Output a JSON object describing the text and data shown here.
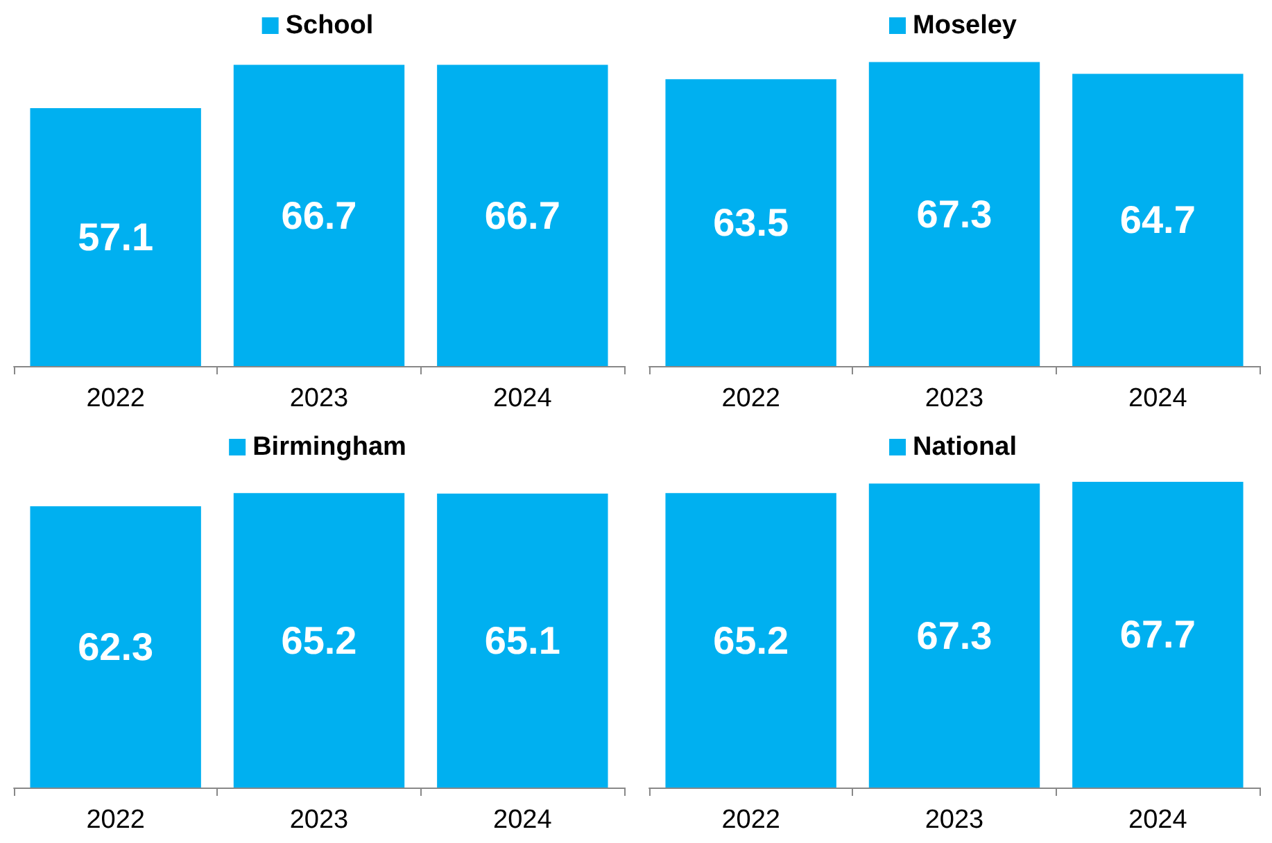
{
  "chart_data": [
    {
      "type": "bar",
      "categories": [
        "2022",
        "2023",
        "2024"
      ],
      "series": [
        {
          "name": "School",
          "color": "#00b0f0",
          "values": [
            57.1,
            66.7,
            66.7
          ]
        }
      ],
      "data_labels": true,
      "legend": "top",
      "tick_labels": "x"
    },
    {
      "type": "bar",
      "categories": [
        "2022",
        "2023",
        "2024"
      ],
      "series": [
        {
          "name": "Moseley",
          "color": "#00b0f0",
          "values": [
            63.5,
            67.3,
            64.7
          ]
        }
      ],
      "data_labels": true,
      "legend": "top",
      "tick_labels": "x"
    },
    {
      "type": "bar",
      "categories": [
        "2022",
        "2023",
        "2024"
      ],
      "series": [
        {
          "name": "Birmingham",
          "color": "#00b0f0",
          "values": [
            62.3,
            65.2,
            65.1
          ]
        }
      ],
      "data_labels": true,
      "legend": "top",
      "tick_labels": "x"
    },
    {
      "type": "bar",
      "categories": [
        "2022",
        "2023",
        "2024"
      ],
      "series": [
        {
          "name": "National",
          "color": "#00b0f0",
          "values": [
            65.2,
            67.3,
            67.7
          ]
        }
      ],
      "data_labels": true,
      "legend": "top",
      "tick_labels": "x"
    }
  ]
}
